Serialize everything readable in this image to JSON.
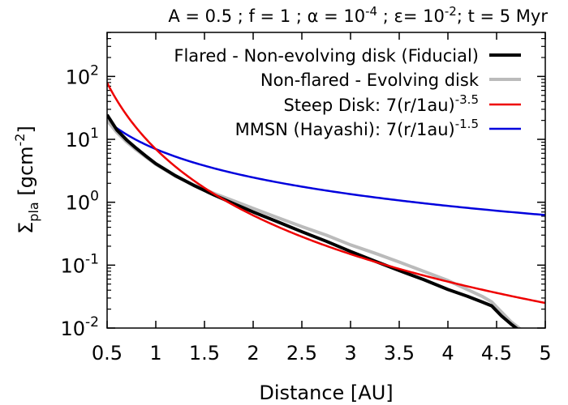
{
  "chart_data": {
    "type": "line",
    "title": {
      "main": "A = 0.5 ; f = 1 ; α = 10",
      "alpha_exp": "-4",
      "mid": " ;  ε= 10",
      "eps_exp": "-2",
      "end": "; t = 5 Myr"
    },
    "xlabel": "Distance [AU]",
    "ylabel": {
      "base": "Σ",
      "sub": "pla",
      "unit": " [gcm",
      "unit_exp": "-2",
      "close": "]"
    },
    "xlim": [
      0.5,
      5
    ],
    "ylim_log10": [
      -2,
      2.7
    ],
    "y_scale": "log",
    "x_ticks": [
      {
        "v": 0.5,
        "label": "0.5"
      },
      {
        "v": 1,
        "label": "1"
      },
      {
        "v": 1.5,
        "label": "1.5"
      },
      {
        "v": 2,
        "label": "2"
      },
      {
        "v": 2.5,
        "label": "2.5"
      },
      {
        "v": 3,
        "label": "3"
      },
      {
        "v": 3.5,
        "label": "3.5"
      },
      {
        "v": 4,
        "label": "4"
      },
      {
        "v": 4.5,
        "label": "4.5"
      },
      {
        "v": 5,
        "label": "5"
      }
    ],
    "y_ticks": [
      {
        "exp": -2,
        "base": "10",
        "sup": "-2"
      },
      {
        "exp": -1,
        "base": "10",
        "sup": "-1"
      },
      {
        "exp": 0,
        "base": "10",
        "sup": "0"
      },
      {
        "exp": 1,
        "base": "10",
        "sup": "1"
      },
      {
        "exp": 2,
        "base": "10",
        "sup": "2"
      }
    ],
    "legend_position": "top-right",
    "series": [
      {
        "name": "Flared - Non-evolving disk (Fiducial)",
        "legend": {
          "text": "Flared - Non-evolving disk (Fiducial)",
          "sup": ""
        },
        "color": "#000000",
        "width": 4,
        "x": [
          0.5,
          0.6,
          0.7,
          0.8,
          0.9,
          1.0,
          1.2,
          1.4,
          1.6,
          1.8,
          2.0,
          2.25,
          2.5,
          2.75,
          3.0,
          3.25,
          3.5,
          3.75,
          4.0,
          4.2,
          4.35,
          4.45,
          4.55,
          4.65,
          4.72
        ],
        "y": [
          24.5,
          14.1,
          9.8,
          7.2,
          5.4,
          4.1,
          2.65,
          1.82,
          1.3,
          0.95,
          0.7,
          0.49,
          0.34,
          0.24,
          0.165,
          0.116,
          0.082,
          0.059,
          0.041,
          0.032,
          0.026,
          0.0225,
          0.0156,
          0.0115,
          0.0095
        ]
      },
      {
        "name": "Non-flared - Evolving disk",
        "legend": {
          "text": "Non-flared - Evolving disk",
          "sup": ""
        },
        "color": "#bbbbbb",
        "width": 4,
        "x": [
          0.5,
          0.6,
          0.7,
          0.8,
          0.9,
          1.0,
          1.2,
          1.4,
          1.6,
          1.8,
          2.0,
          2.25,
          2.5,
          2.75,
          3.0,
          3.25,
          3.5,
          3.75,
          4.0,
          4.2,
          4.35,
          4.45,
          4.55,
          4.65,
          4.75
        ],
        "y": [
          20.0,
          12.9,
          9.1,
          6.8,
          5.2,
          4.0,
          2.6,
          1.86,
          1.38,
          1.05,
          0.8,
          0.57,
          0.41,
          0.3,
          0.21,
          0.155,
          0.112,
          0.08,
          0.057,
          0.041,
          0.032,
          0.026,
          0.018,
          0.0125,
          0.0095
        ]
      },
      {
        "name": "Steep Disk: 7(r/1au)^-3.5",
        "legend": {
          "text": "Steep Disk: 7(r/1au)",
          "sup": "-3.5"
        },
        "color": "#ee0000",
        "width": 2.5,
        "formula": {
          "amp": 7,
          "slope": -3.5
        },
        "x_range": [
          0.5,
          5
        ]
      },
      {
        "name": "MMSN (Hayashi): 7(r/1au)^-1.5",
        "legend": {
          "text": "MMSN (Hayashi): 7(r/1au)",
          "sup": "-1.5"
        },
        "color": "#0000dd",
        "width": 2.5,
        "formula": {
          "amp": 7,
          "slope": -1.5
        },
        "x_range": [
          0.5,
          5
        ]
      }
    ]
  }
}
